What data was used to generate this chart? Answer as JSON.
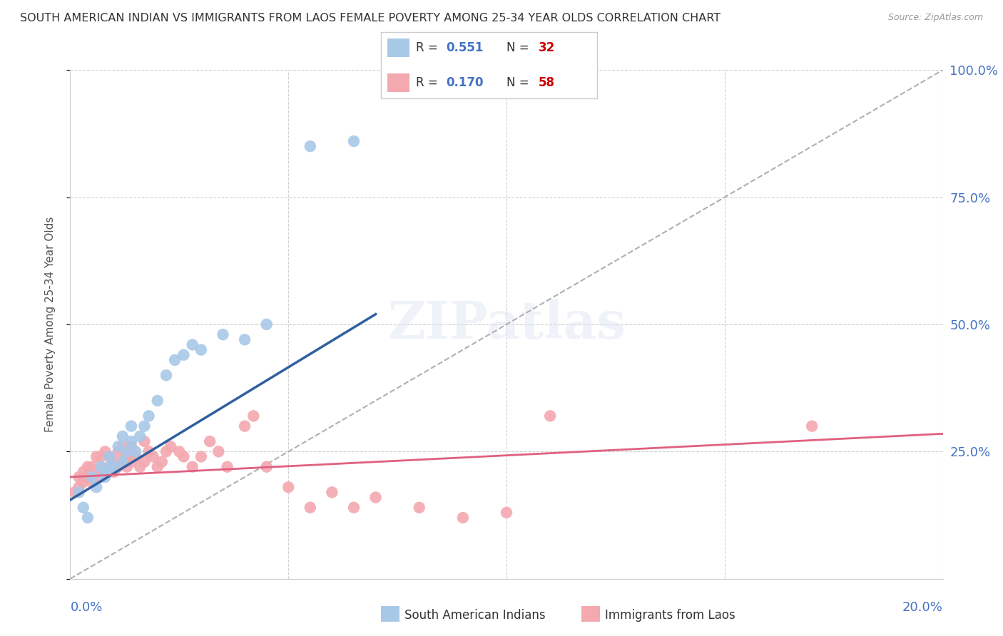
{
  "title": "SOUTH AMERICAN INDIAN VS IMMIGRANTS FROM LAOS FEMALE POVERTY AMONG 25-34 YEAR OLDS CORRELATION CHART",
  "source": "Source: ZipAtlas.com",
  "ylabel": "Female Poverty Among 25-34 Year Olds",
  "xmin": 0.0,
  "xmax": 0.2,
  "ymin": 0.0,
  "ymax": 1.0,
  "yticks": [
    0.0,
    0.25,
    0.5,
    0.75,
    1.0
  ],
  "ytick_labels": [
    "",
    "25.0%",
    "50.0%",
    "75.0%",
    "100.0%"
  ],
  "xticks": [
    0.0,
    0.05,
    0.1,
    0.15,
    0.2
  ],
  "R_blue": 0.551,
  "N_blue": 32,
  "R_pink": 0.17,
  "N_pink": 58,
  "legend_label_blue": "South American Indians",
  "legend_label_pink": "Immigrants from Laos",
  "blue_scatter_color": "#a8c8e8",
  "pink_scatter_color": "#f4a8b0",
  "blue_line_color": "#3060a0",
  "pink_line_color": "#e06080",
  "diagonal_color": "#b0b0b0",
  "background_color": "#ffffff",
  "grid_color": "#d0d0d0",
  "title_color": "#333333",
  "axis_label_color": "#4472c4",
  "legend_R_color": "#4472c4",
  "legend_N_color": "#cc0000",
  "blue_scatter": {
    "x": [
      0.002,
      0.003,
      0.004,
      0.005,
      0.006,
      0.007,
      0.008,
      0.008,
      0.009,
      0.009,
      0.01,
      0.011,
      0.012,
      0.012,
      0.013,
      0.014,
      0.014,
      0.015,
      0.016,
      0.017,
      0.018,
      0.02,
      0.022,
      0.024,
      0.026,
      0.028,
      0.03,
      0.035,
      0.04,
      0.045,
      0.055,
      0.065
    ],
    "y": [
      0.17,
      0.14,
      0.12,
      0.2,
      0.18,
      0.22,
      0.2,
      0.21,
      0.24,
      0.22,
      0.22,
      0.26,
      0.23,
      0.28,
      0.25,
      0.27,
      0.3,
      0.25,
      0.28,
      0.3,
      0.32,
      0.35,
      0.4,
      0.43,
      0.44,
      0.46,
      0.45,
      0.48,
      0.47,
      0.5,
      0.85,
      0.86
    ]
  },
  "pink_scatter": {
    "x": [
      0.001,
      0.002,
      0.002,
      0.003,
      0.003,
      0.004,
      0.004,
      0.005,
      0.005,
      0.006,
      0.006,
      0.007,
      0.007,
      0.007,
      0.008,
      0.008,
      0.009,
      0.009,
      0.01,
      0.01,
      0.011,
      0.011,
      0.012,
      0.012,
      0.013,
      0.013,
      0.014,
      0.014,
      0.015,
      0.016,
      0.017,
      0.017,
      0.018,
      0.019,
      0.02,
      0.021,
      0.022,
      0.023,
      0.025,
      0.026,
      0.028,
      0.03,
      0.032,
      0.034,
      0.036,
      0.04,
      0.042,
      0.045,
      0.05,
      0.055,
      0.06,
      0.065,
      0.07,
      0.08,
      0.09,
      0.1,
      0.11,
      0.17
    ],
    "y": [
      0.17,
      0.18,
      0.2,
      0.19,
      0.21,
      0.2,
      0.22,
      0.19,
      0.22,
      0.21,
      0.24,
      0.22,
      0.2,
      0.24,
      0.21,
      0.25,
      0.22,
      0.24,
      0.21,
      0.23,
      0.22,
      0.25,
      0.23,
      0.26,
      0.22,
      0.24,
      0.23,
      0.26,
      0.24,
      0.22,
      0.23,
      0.27,
      0.25,
      0.24,
      0.22,
      0.23,
      0.25,
      0.26,
      0.25,
      0.24,
      0.22,
      0.24,
      0.27,
      0.25,
      0.22,
      0.3,
      0.32,
      0.22,
      0.18,
      0.14,
      0.17,
      0.14,
      0.16,
      0.14,
      0.12,
      0.13,
      0.32,
      0.3
    ]
  },
  "blue_line": {
    "x0": 0.0,
    "y0": 0.155,
    "x1": 0.07,
    "y1": 0.52
  },
  "pink_line": {
    "x0": 0.0,
    "y0": 0.2,
    "x1": 0.2,
    "y1": 0.285
  }
}
